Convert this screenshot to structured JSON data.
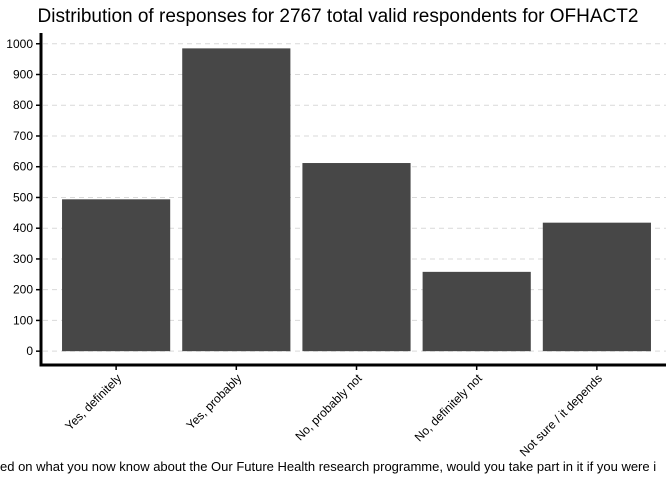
{
  "chart_data": {
    "type": "bar",
    "title": "Distribution of responses for 2767 total valid respondents for OFHACT2",
    "xlabel": "ed on what you now know about the Our Future Health research programme, would you take part in it if you were i",
    "ylabel": "",
    "categories": [
      "Yes, definitely",
      "Yes, probably",
      "No, probably not",
      "No, definitely not",
      "Not sure / it depends"
    ],
    "values": [
      494,
      985,
      612,
      258,
      418
    ],
    "yticks": [
      0,
      100,
      200,
      300,
      400,
      500,
      600,
      700,
      800,
      900,
      1000
    ],
    "ylim": [
      -45,
      1035
    ],
    "grid": true,
    "grid_style": "dashed-horizontal",
    "bar_color": "#474747"
  }
}
